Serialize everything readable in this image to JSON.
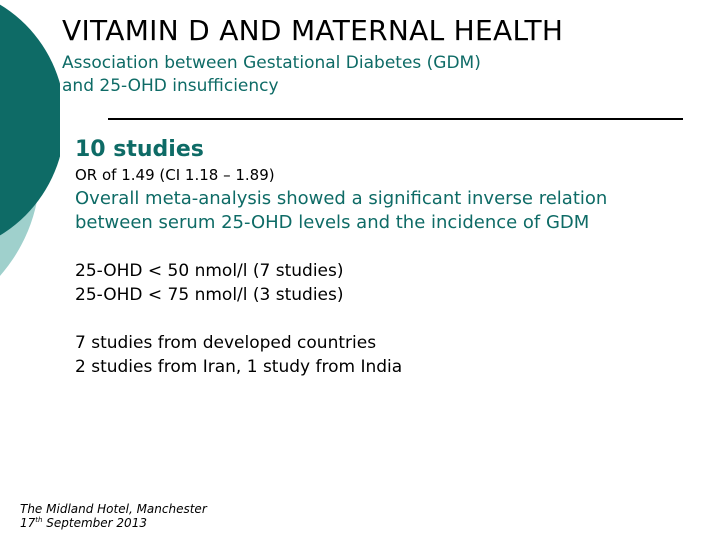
{
  "slide": {
    "title": "VITAMIN D AND MATERNAL HEALTH",
    "subtitle_line1": "Association between Gestational Diabetes (GDM)",
    "subtitle_line2": "and 25-OHD insufficiency",
    "heading": "10 studies",
    "odds_ratio": "OR of 1.49 (CI 1.18 – 1.89)",
    "summary_line1": "Overall meta-analysis showed a significant inverse relation",
    "summary_line2": "between serum 25-OHD levels and the incidence of GDM",
    "thresholds": [
      "25-OHD < 50 nmol/l (7 studies)",
      "25-OHD < 75 nmol/l (3 studies)"
    ],
    "origins": [
      "7 studies from developed countries",
      "2 studies from Iran, 1 study from India"
    ]
  },
  "footer": {
    "venue": "The Midland Hotel, Manchester",
    "date_day": "17",
    "date_suffix": "th",
    "date_rest": " September 2013"
  },
  "colors": {
    "accent_dark": "#0e6b66",
    "accent_light": "#8cc9c6"
  }
}
